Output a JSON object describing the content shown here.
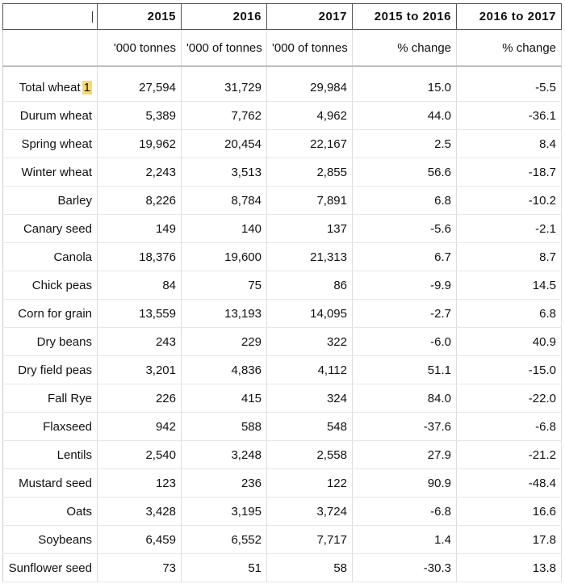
{
  "header": {
    "corner_text": "",
    "columns": [
      "2015",
      "2016",
      "2017",
      "2015 to 2016",
      "2016 to 2017"
    ]
  },
  "units": [
    "",
    "'000 tonnes",
    "'000 of tonnes",
    "'000 of tonnes",
    "% change",
    "% change"
  ],
  "rows": [
    {
      "crop": "Total wheat",
      "footnote": "1",
      "v2015": "27,594",
      "v2016": "31,729",
      "v2017": "29,984",
      "chg1": "15.0",
      "chg2": "-5.5"
    },
    {
      "crop": "Durum wheat",
      "v2015": "5,389",
      "v2016": "7,762",
      "v2017": "4,962",
      "chg1": "44.0",
      "chg2": "-36.1"
    },
    {
      "crop": "Spring wheat",
      "v2015": "19,962",
      "v2016": "20,454",
      "v2017": "22,167",
      "chg1": "2.5",
      "chg2": "8.4"
    },
    {
      "crop": "Winter wheat",
      "v2015": "2,243",
      "v2016": "3,513",
      "v2017": "2,855",
      "chg1": "56.6",
      "chg2": "-18.7"
    },
    {
      "crop": "Barley",
      "v2015": "8,226",
      "v2016": "8,784",
      "v2017": "7,891",
      "chg1": "6.8",
      "chg2": "-10.2"
    },
    {
      "crop": "Canary seed",
      "v2015": "149",
      "v2016": "140",
      "v2017": "137",
      "chg1": "-5.6",
      "chg2": "-2.1"
    },
    {
      "crop": "Canola",
      "v2015": "18,376",
      "v2016": "19,600",
      "v2017": "21,313",
      "chg1": "6.7",
      "chg2": "8.7"
    },
    {
      "crop": "Chick peas",
      "v2015": "84",
      "v2016": "75",
      "v2017": "86",
      "chg1": "-9.9",
      "chg2": "14.5"
    },
    {
      "crop": "Corn for grain",
      "v2015": "13,559",
      "v2016": "13,193",
      "v2017": "14,095",
      "chg1": "-2.7",
      "chg2": "6.8"
    },
    {
      "crop": "Dry beans",
      "v2015": "243",
      "v2016": "229",
      "v2017": "322",
      "chg1": "-6.0",
      "chg2": "40.9"
    },
    {
      "crop": "Dry field peas",
      "v2015": "3,201",
      "v2016": "4,836",
      "v2017": "4,112",
      "chg1": "51.1",
      "chg2": "-15.0"
    },
    {
      "crop": "Fall Rye",
      "v2015": "226",
      "v2016": "415",
      "v2017": "324",
      "chg1": "84.0",
      "chg2": "-22.0"
    },
    {
      "crop": "Flaxseed",
      "v2015": "942",
      "v2016": "588",
      "v2017": "548",
      "chg1": "-37.6",
      "chg2": "-6.8"
    },
    {
      "crop": "Lentils",
      "v2015": "2,540",
      "v2016": "3,248",
      "v2017": "2,558",
      "chg1": "27.9",
      "chg2": "-21.2"
    },
    {
      "crop": "Mustard seed",
      "v2015": "123",
      "v2016": "236",
      "v2017": "122",
      "chg1": "90.9",
      "chg2": "-48.4"
    },
    {
      "crop": "Oats",
      "v2015": "3,428",
      "v2016": "3,195",
      "v2017": "3,724",
      "chg1": "-6.8",
      "chg2": "16.6"
    },
    {
      "crop": "Soybeans",
      "v2015": "6,459",
      "v2016": "6,552",
      "v2017": "7,717",
      "chg1": "1.4",
      "chg2": "17.8"
    },
    {
      "crop": "Sunflower seed",
      "v2015": "73",
      "v2016": "51",
      "v2017": "58",
      "chg1": "-30.3",
      "chg2": "13.8"
    }
  ],
  "colors": {
    "footnote_highlight": "#f7d774",
    "header_border": "#555555"
  }
}
